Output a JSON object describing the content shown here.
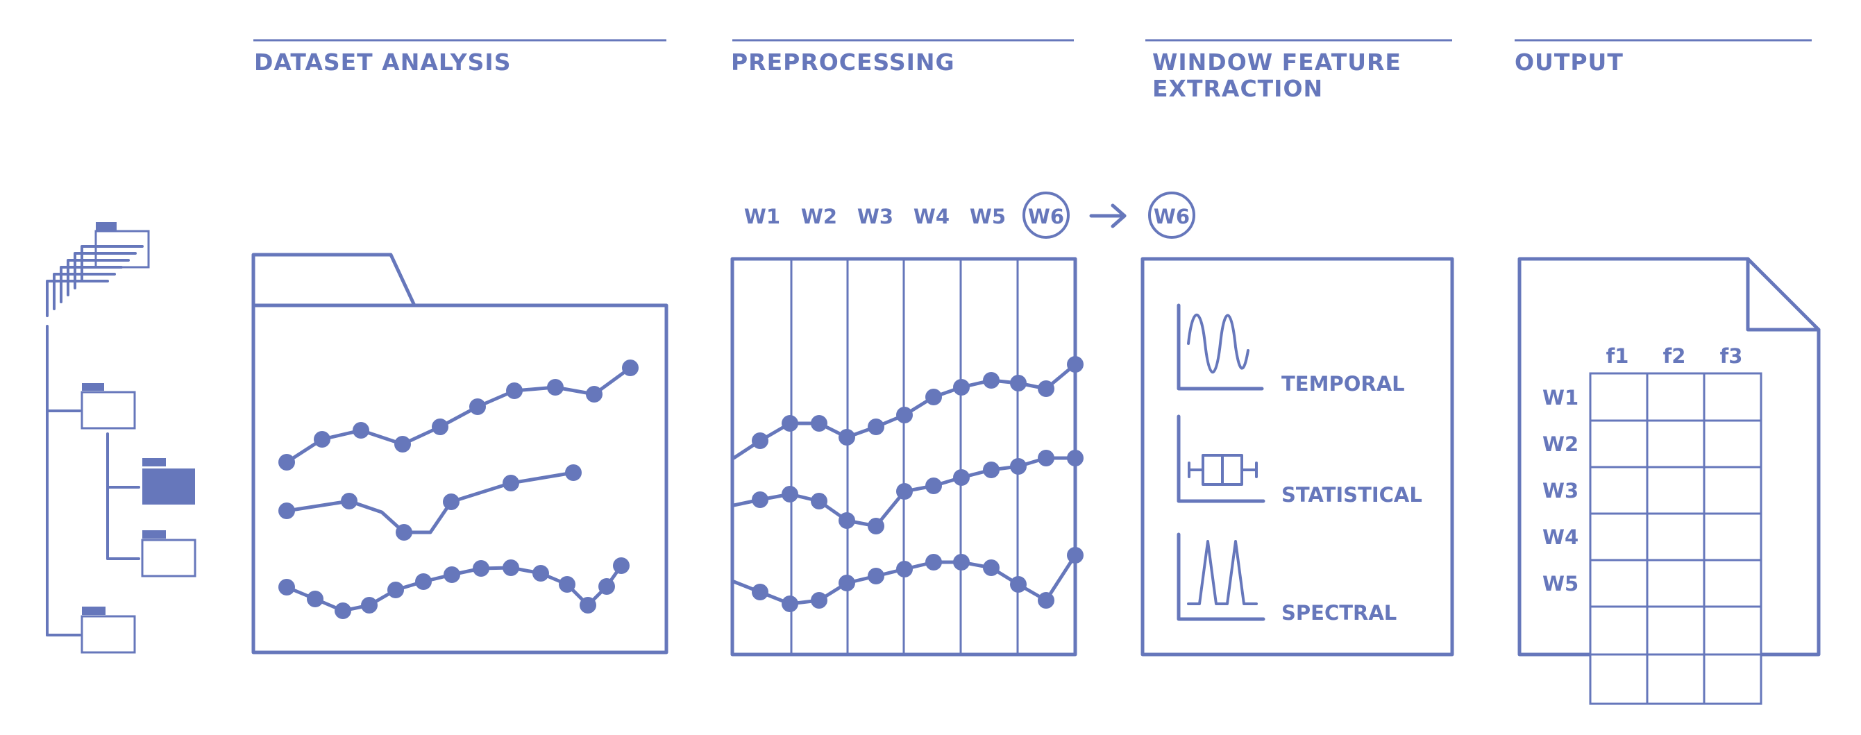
{
  "stages": {
    "dataset_analysis": "DATASET ANALYSIS",
    "preprocessing": "PREPROCESSING",
    "window_feature_line1": "WINDOW FEATURE",
    "window_feature_line2": "EXTRACTION",
    "output": "OUTPUT"
  },
  "windows": [
    "W1",
    "W2",
    "W3",
    "W4",
    "W5",
    "W6"
  ],
  "selected_window": "W6",
  "feature_types": {
    "temporal": "TEMPORAL",
    "statistical": "STATISTICAL",
    "spectral": "SPECTRAL"
  },
  "output_table": {
    "columns": [
      "f1",
      "f2",
      "f3"
    ],
    "rows": [
      "W1",
      "W2",
      "W3",
      "W4",
      "W5"
    ]
  },
  "colors": {
    "accent": "#6677bb"
  },
  "icons": [
    "folder-tree-icon",
    "folder-icon",
    "arrow-right-icon",
    "document-icon",
    "waveform-icon",
    "boxplot-icon",
    "spectrum-icon"
  ]
}
